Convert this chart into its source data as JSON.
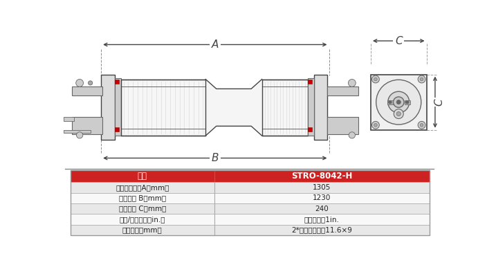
{
  "table_header_bg": "#cc2222",
  "table_header_text_color": "#ffffff",
  "table_row_bg_odd": "#e8e8e8",
  "table_row_bg_even": "#f8f8f8",
  "table_text_color": "#222222",
  "table_border_color": "#aaaaaa",
  "header_label_left": "型号",
  "header_label_right": "STRO-8042-H",
  "rows": [
    [
      "膜组件拉杆长A（mm）",
      "1305"
    ],
    [
      "法兰间距 B（mm）",
      "1230"
    ],
    [
      "法兰宽度 C（mm）",
      "240"
    ],
    [
      "进水/浓水接口（in.）",
      "卡箎式接口1in."
    ],
    [
      "产水接口（mm）",
      "2*软管快速接口11.6×9"
    ]
  ],
  "dim_label_A": "A",
  "dim_label_B": "B",
  "dim_label_C": "C",
  "background_color": "#ffffff",
  "line_color": "#444444",
  "light_gray": "#cccccc",
  "mid_gray": "#aaaaaa",
  "dark_gray": "#666666",
  "hatch_gray": "#dddddd",
  "red_bolt": "#cc0000"
}
